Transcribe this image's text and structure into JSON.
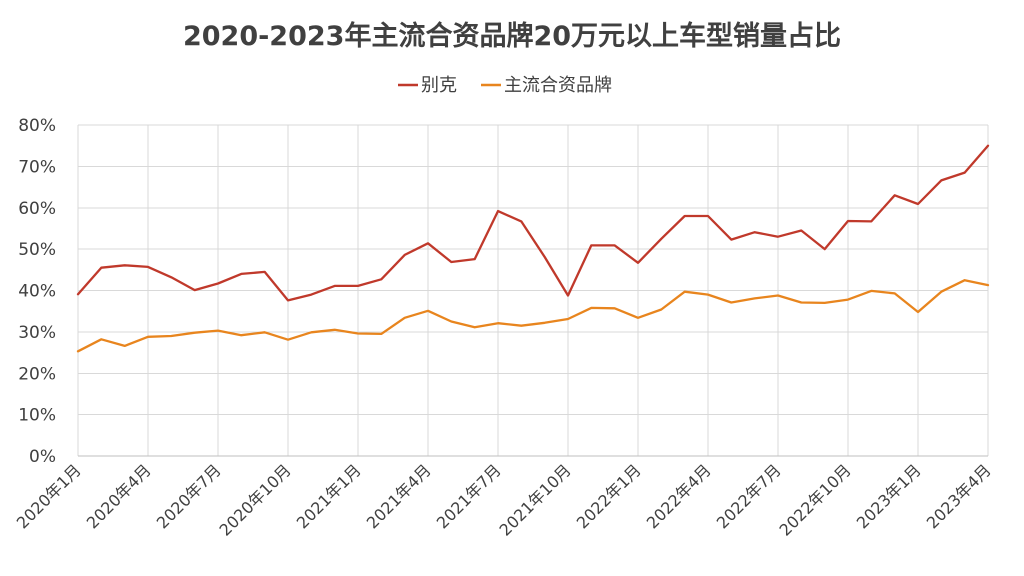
{
  "chart_data": {
    "type": "line",
    "title": "2020-2023年主流合资品牌20万元以上车型销量占比",
    "legend_position": "top-center",
    "grid": true,
    "y_tick_labels": [
      "0%",
      "10%",
      "20%",
      "30%",
      "40%",
      "50%",
      "60%",
      "70%",
      "80%"
    ],
    "ylim": [
      0,
      80
    ],
    "x": [
      "2020年1月",
      "2020年2月",
      "2020年3月",
      "2020年4月",
      "2020年5月",
      "2020年6月",
      "2020年7月",
      "2020年8月",
      "2020年9月",
      "2020年10月",
      "2020年11月",
      "2020年12月",
      "2021年1月",
      "2021年2月",
      "2021年3月",
      "2021年4月",
      "2021年5月",
      "2021年6月",
      "2021年7月",
      "2021年8月",
      "2021年9月",
      "2021年10月",
      "2021年11月",
      "2021年12月",
      "2022年1月",
      "2022年2月",
      "2022年3月",
      "2022年4月",
      "2022年5月",
      "2022年6月",
      "2022年7月",
      "2022年8月",
      "2022年9月",
      "2022年10月",
      "2022年11月",
      "2022年12月",
      "2023年1月",
      "2023年2月",
      "2023年3月",
      "2023年4月"
    ],
    "x_tick_labels": [
      "2020年1月",
      "2020年4月",
      "2020年7月",
      "2020年10月",
      "2021年1月",
      "2021年4月",
      "2021年7月",
      "2021年10月",
      "2022年1月",
      "2022年4月",
      "2022年7月",
      "2022年10月",
      "2023年1月",
      "2023年4月"
    ],
    "series": [
      {
        "name": "别克",
        "color": "#c0392b",
        "values": [
          39.1,
          45.5,
          46.1,
          45.7,
          43.2,
          40.1,
          41.7,
          44.0,
          44.5,
          37.6,
          39.0,
          41.1,
          41.1,
          42.7,
          48.6,
          51.4,
          46.9,
          47.6,
          59.2,
          56.7,
          48.1,
          38.8,
          50.9,
          50.9,
          46.7,
          52.5,
          58.0,
          58.0,
          52.3,
          54.1,
          53.0,
          54.5,
          50.0,
          56.8,
          56.7,
          63.0,
          60.9,
          66.6,
          68.5,
          75.0
        ]
      },
      {
        "name": "主流合资品牌",
        "color": "#e8851e",
        "values": [
          25.3,
          28.2,
          26.6,
          28.8,
          29.0,
          29.8,
          30.3,
          29.2,
          29.9,
          28.1,
          29.9,
          30.5,
          29.6,
          29.5,
          33.4,
          35.1,
          32.5,
          31.1,
          32.1,
          31.5,
          32.2,
          33.1,
          35.8,
          35.7,
          33.4,
          35.4,
          39.7,
          39.0,
          37.1,
          38.1,
          38.8,
          37.1,
          37.0,
          37.8,
          39.9,
          39.3,
          34.8,
          39.7,
          42.5,
          41.3
        ]
      }
    ]
  }
}
